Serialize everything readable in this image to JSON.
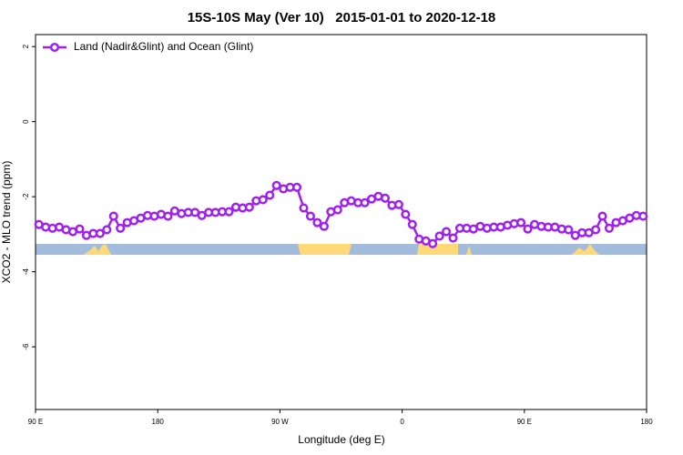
{
  "chart_data": {
    "type": "line",
    "title": "15S-10S May (Ver 10)   2015-01-01 to 2020-12-18",
    "xlabel": "Longitude (deg E)",
    "ylabel": "XCO2 - MLO trend (ppm)",
    "xlim": [
      90,
      540
    ],
    "ylim": [
      -7.67,
      2.32
    ],
    "xticks": [
      {
        "value": 90,
        "label": "90 E"
      },
      180,
      {
        "value": 270,
        "label": "90 W"
      },
      {
        "value": 360,
        "label": "0"
      },
      {
        "value": 450,
        "label": "90 E"
      },
      {
        "value": 540,
        "label": "180"
      }
    ],
    "yticks": [
      -6,
      -4,
      -2,
      0,
      2
    ],
    "legend": "top-left",
    "x": [
      92.5,
      97.5,
      102.5,
      107.5,
      112.5,
      117.5,
      122.5,
      127.5,
      132.5,
      137.5,
      142.5,
      147.5,
      152.5,
      157.5,
      162.5,
      167.5,
      172.5,
      177.5,
      182.5,
      187.5,
      192.5,
      197.5,
      202.5,
      207.5,
      212.5,
      217.5,
      222.5,
      227.5,
      232.5,
      237.5,
      242.5,
      247.5,
      252.5,
      257.5,
      262.5,
      267.5,
      272.5,
      277.5,
      282.5,
      287.5,
      292.5,
      297.5,
      302.5,
      307.5,
      312.5,
      317.5,
      322.5,
      327.5,
      332.5,
      337.5,
      342.5,
      347.5,
      352.5,
      357.5,
      362.5,
      367.5,
      372.5,
      377.5,
      382.5,
      387.5,
      392.5,
      397.5,
      402.5,
      407.5,
      412.5,
      417.5,
      422.5,
      427.5,
      432.5,
      437.5,
      442.5,
      447.5,
      452.5,
      457.5,
      462.5,
      467.5,
      472.5,
      477.5,
      482.5,
      487.5,
      492.5,
      497.5,
      502.5,
      507.5,
      512.5,
      517.5,
      522.5,
      527.5,
      532.5,
      537.5
    ],
    "series": [
      {
        "name": "Land (Nadir&Glint) and Ocean (Glint)",
        "color": "#a020f0",
        "values": [
          -2.74,
          -2.81,
          -2.84,
          -2.81,
          -2.88,
          -2.93,
          -2.86,
          -3.03,
          -2.98,
          -2.98,
          -2.88,
          -2.52,
          -2.84,
          -2.69,
          -2.64,
          -2.57,
          -2.5,
          -2.52,
          -2.47,
          -2.52,
          -2.38,
          -2.45,
          -2.42,
          -2.42,
          -2.5,
          -2.42,
          -2.42,
          -2.4,
          -2.4,
          -2.28,
          -2.3,
          -2.28,
          -2.11,
          -2.08,
          -1.96,
          -1.7,
          -1.79,
          -1.75,
          -1.75,
          -2.3,
          -2.52,
          -2.69,
          -2.79,
          -2.4,
          -2.35,
          -2.16,
          -2.11,
          -2.16,
          -2.16,
          -2.06,
          -1.99,
          -2.04,
          -2.23,
          -2.21,
          -2.47,
          -2.74,
          -3.13,
          -3.18,
          -3.25,
          -3.05,
          -2.93,
          -3.1,
          -2.84,
          -2.84,
          -2.86,
          -2.79,
          -2.84,
          -2.81,
          -2.81,
          -2.76,
          -2.72,
          -2.69,
          -2.86,
          -2.74,
          -2.79,
          -2.81,
          -2.81,
          -2.86,
          -2.88,
          -3.03,
          -2.96,
          -2.96,
          -2.88,
          -2.52,
          -2.84,
          -2.69,
          -2.64,
          -2.57,
          -2.5,
          -2.52
        ]
      }
    ]
  }
}
